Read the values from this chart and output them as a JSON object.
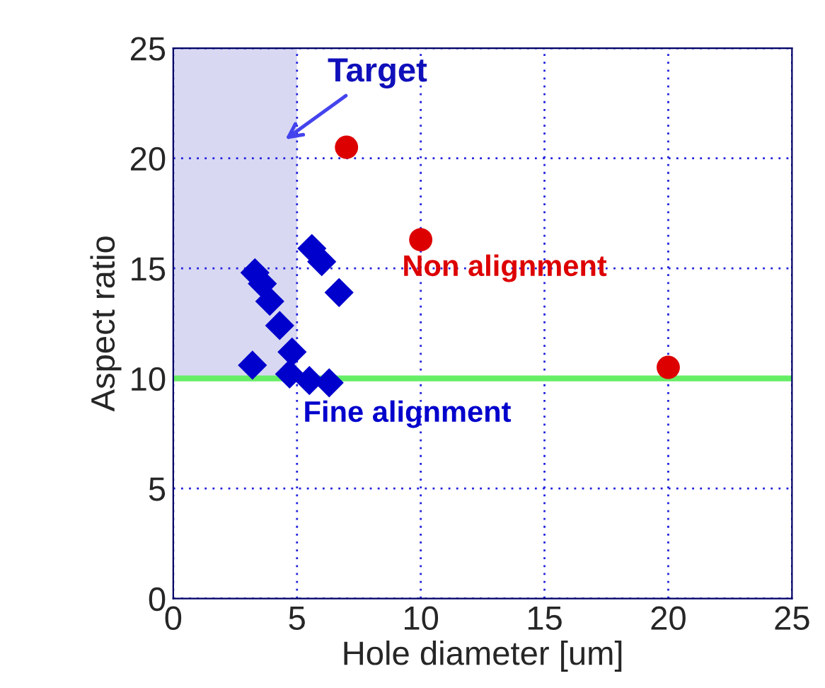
{
  "chart_data": {
    "type": "scatter",
    "xlabel": "Hole diameter [um]",
    "ylabel": "Aspect ratio",
    "xlim": [
      0,
      25
    ],
    "ylim": [
      0,
      25
    ],
    "xticks": [
      0,
      5,
      10,
      15,
      20,
      25
    ],
    "yticks": [
      0,
      5,
      10,
      15,
      20,
      25
    ],
    "grid": true,
    "series": [
      {
        "name": "Fine alignment",
        "color": "#0000cc",
        "marker": "diamond",
        "x": [
          3.2,
          3.3,
          3.6,
          3.9,
          4.3,
          4.8,
          4.7,
          5.5,
          6.3,
          5.6,
          6.0,
          6.7
        ],
        "values": [
          10.6,
          14.8,
          14.3,
          13.5,
          12.4,
          11.2,
          10.2,
          9.9,
          9.8,
          15.9,
          15.3,
          13.9
        ]
      },
      {
        "name": "Non alignment",
        "color": "#dd0000",
        "marker": "circle",
        "x": [
          7,
          10,
          20
        ],
        "values": [
          20.5,
          16.3,
          10.5
        ]
      }
    ],
    "ref_lines": [
      {
        "axis": "y",
        "value": 10,
        "color": "#66ee66"
      }
    ],
    "bands": [
      {
        "axis": "x",
        "from": 0,
        "to": 5,
        "label": "Target",
        "color": "#d8d8f2"
      }
    ]
  }
}
